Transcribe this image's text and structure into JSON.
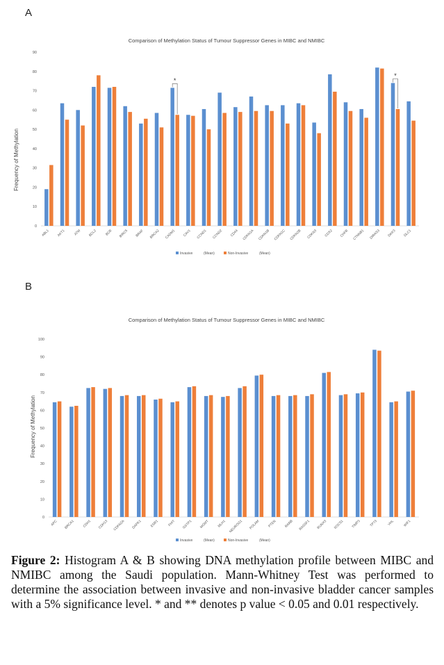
{
  "colors": {
    "invasive": "#5b8fd0",
    "non_invasive": "#ee7f3a",
    "axis": "#d0d0d0",
    "text": "#555555"
  },
  "chart_data": [
    {
      "panel": "A",
      "type": "bar",
      "title": "Comparison of Methylation Status of Tumour Suppressor Genes in MIBC and NMIBC",
      "ylabel": "Frequency of Methylation",
      "ylim": [
        0,
        90
      ],
      "yticks": [
        0,
        10,
        20,
        30,
        40,
        50,
        60,
        70,
        80,
        90
      ],
      "legend": [
        "Invasive",
        "(Mean)",
        "Non-Invasive",
        "(Mean)"
      ],
      "legend_position": "bottom",
      "categories": [
        "ABL1",
        "AKT1",
        "ATM",
        "BCL2",
        "BCR",
        "BIRC5",
        "BRAF",
        "BRCA2",
        "CADM1",
        "CAV1",
        "CCND1",
        "CCND2",
        "CD44",
        "CDKN1A",
        "CDKN1B",
        "CDKN1C",
        "CDKN2B",
        "CDKN3",
        "CDX2",
        "CHFR",
        "CTNNB1",
        "DIRAS3",
        "DKK3",
        "DLC1"
      ],
      "series": [
        {
          "name": "Invasive",
          "values": [
            19,
            63.5,
            60,
            72,
            71.5,
            62,
            53,
            58.5,
            71.5,
            57.5,
            60.5,
            69,
            61.5,
            67,
            62.5,
            62.5,
            63.5,
            53.5,
            78.5,
            64,
            60.5,
            82,
            74,
            64.5
          ]
        },
        {
          "name": "Non-Invasive",
          "values": [
            31.5,
            55,
            52,
            78,
            72,
            59,
            55.5,
            51,
            57.5,
            57,
            50,
            58.5,
            59,
            59.5,
            59.5,
            53,
            62.5,
            48,
            69.5,
            59.5,
            56,
            81.5,
            60.5,
            54.5
          ]
        }
      ],
      "significance": [
        {
          "category": "CADM1",
          "label": "*"
        },
        {
          "category": "DKK3",
          "label": "*"
        }
      ]
    },
    {
      "panel": "B",
      "type": "bar",
      "title": "Comparison of Methylation Status of Tumour Suppressor Genes in MIBC and NMIBC",
      "ylabel": "Frequency of Methylation",
      "ylim": [
        0,
        100
      ],
      "yticks": [
        0,
        10,
        20,
        30,
        40,
        50,
        60,
        70,
        80,
        90,
        100
      ],
      "legend": [
        "Invasive",
        "(Mean)",
        "Non-Invasive",
        "(Mean)"
      ],
      "legend_position": "bottom",
      "categories": [
        "APC",
        "BRCA1",
        "CDH1",
        "CDH13",
        "CDKN2A",
        "DAPK1",
        "ESR1",
        "FHIT",
        "GSTP1",
        "MGMT",
        "MLH1",
        "NEUROG1",
        "POLAM",
        "PTEN",
        "RARB",
        "RASSF1",
        "RUNX3",
        "SOCS1",
        "TIMP3",
        "TP73",
        "VHL",
        "WIF1"
      ],
      "series": [
        {
          "name": "Invasive",
          "values": [
            64.5,
            62,
            72.5,
            72,
            68,
            68,
            66,
            64.5,
            73,
            68,
            67.5,
            72.5,
            79.5,
            68,
            68,
            68,
            81,
            68.5,
            69.5,
            94,
            64.5,
            70.5
          ]
        },
        {
          "name": "Non-Invasive",
          "values": [
            65,
            62.5,
            73,
            72.5,
            68.5,
            68.5,
            66.5,
            65,
            73.5,
            68.5,
            68,
            73.5,
            80,
            68.5,
            68.5,
            69,
            81.5,
            69,
            70,
            93.5,
            65,
            71
          ]
        }
      ]
    }
  ],
  "caption": {
    "bold": "Figure 2:",
    "text": "Histogram A & B showing DNA methylation profile between MIBC and NMIBC among the Saudi population. Mann-Whitney Test was performed to determine the association between invasive and non-invasive bladder cancer samples with a 5% significance level. * and ** denotes p value < 0.05 and 0.01 respectively."
  }
}
